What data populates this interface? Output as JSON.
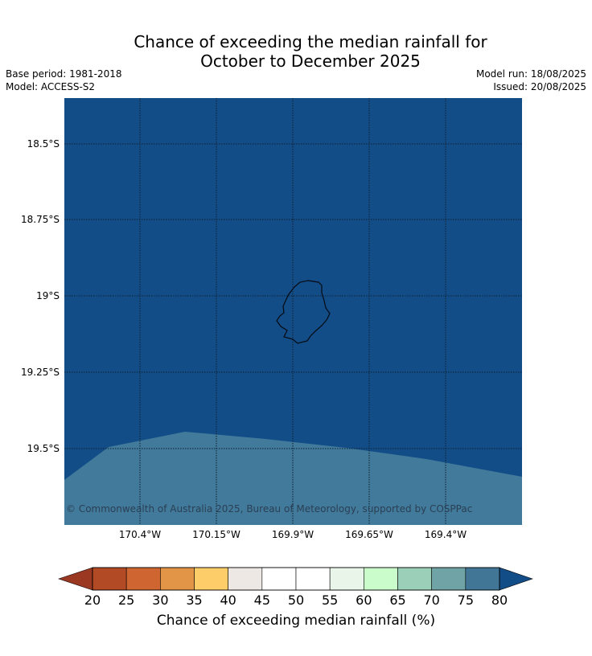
{
  "title_line1": "Chance of exceeding the median rainfall for",
  "title_line2": "October to December 2025",
  "meta": {
    "base_period": "Base period: 1981-2018",
    "model": "Model: ACCESS-S2",
    "model_run": "Model run: 18/08/2025",
    "issued": "Issued: 20/08/2025"
  },
  "lat_labels": [
    "18.5°S",
    "18.75°S",
    "19°S",
    "19.25°S",
    "19.5°S"
  ],
  "lon_labels": [
    "170.4°W",
    "170.15°W",
    "169.9°W",
    "169.65°W",
    "169.4°W"
  ],
  "copyright": "© Commonwealth of Australia 2025, Bureau of Meteorology, supported by COSPPac",
  "colorbar": {
    "ticks": [
      "20",
      "25",
      "30",
      "35",
      "40",
      "45",
      "50",
      "55",
      "60",
      "65",
      "70",
      "75",
      "80"
    ],
    "colors": [
      "#b34a26",
      "#cf6632",
      "#e29447",
      "#fdcd6a",
      "#ede8e3",
      "#ffffff",
      "#ffffff",
      "#e8f5e8",
      "#c9fbcb",
      "#9ccfb7",
      "#6fa3a5",
      "#417697"
    ],
    "under_color": "#9b3822",
    "over_color": "#134d88",
    "label": "Chance of exceeding median rainfall (%)"
  },
  "map_colors": {
    "above_80": "#134d88",
    "band_75_80": "#417a9a"
  }
}
